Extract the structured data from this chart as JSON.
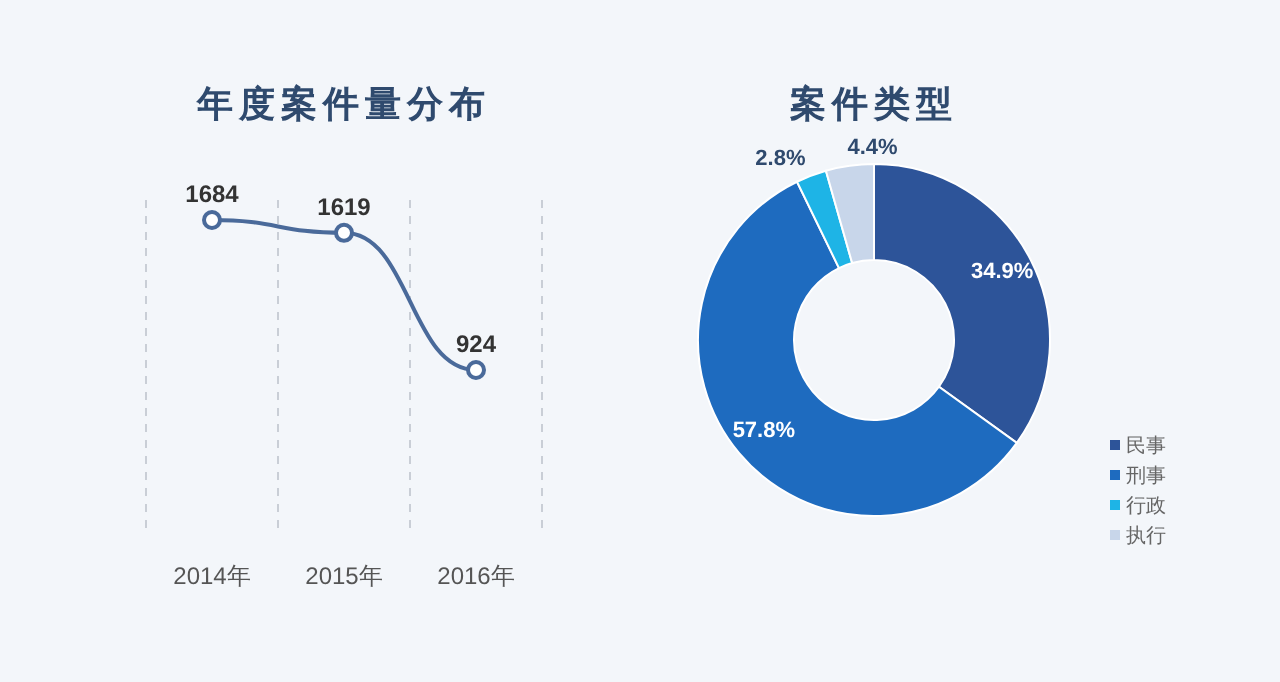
{
  "chart_data": [
    {
      "type": "line",
      "title": "年度案件量分布",
      "categories": [
        "2014年",
        "2015年",
        "2016年"
      ],
      "series": [
        {
          "color": "#4a6a9a",
          "values": [
            1684,
            1619,
            924
          ]
        }
      ],
      "data_labels": true,
      "marker": "circle",
      "grid": "x"
    },
    {
      "type": "donut",
      "title": "案件类型",
      "categories": [
        "民事",
        "刑事",
        "行政",
        "执行"
      ],
      "values": [
        34.9,
        57.8,
        2.8,
        4.4
      ],
      "colors": [
        "#2d5499",
        "#1e6bbf",
        "#1eb4e6",
        "#c8d6ea"
      ],
      "value_labels": [
        "34.9%",
        "57.8%",
        "2.8%",
        "4.4%"
      ],
      "legend": "bottom right"
    }
  ]
}
